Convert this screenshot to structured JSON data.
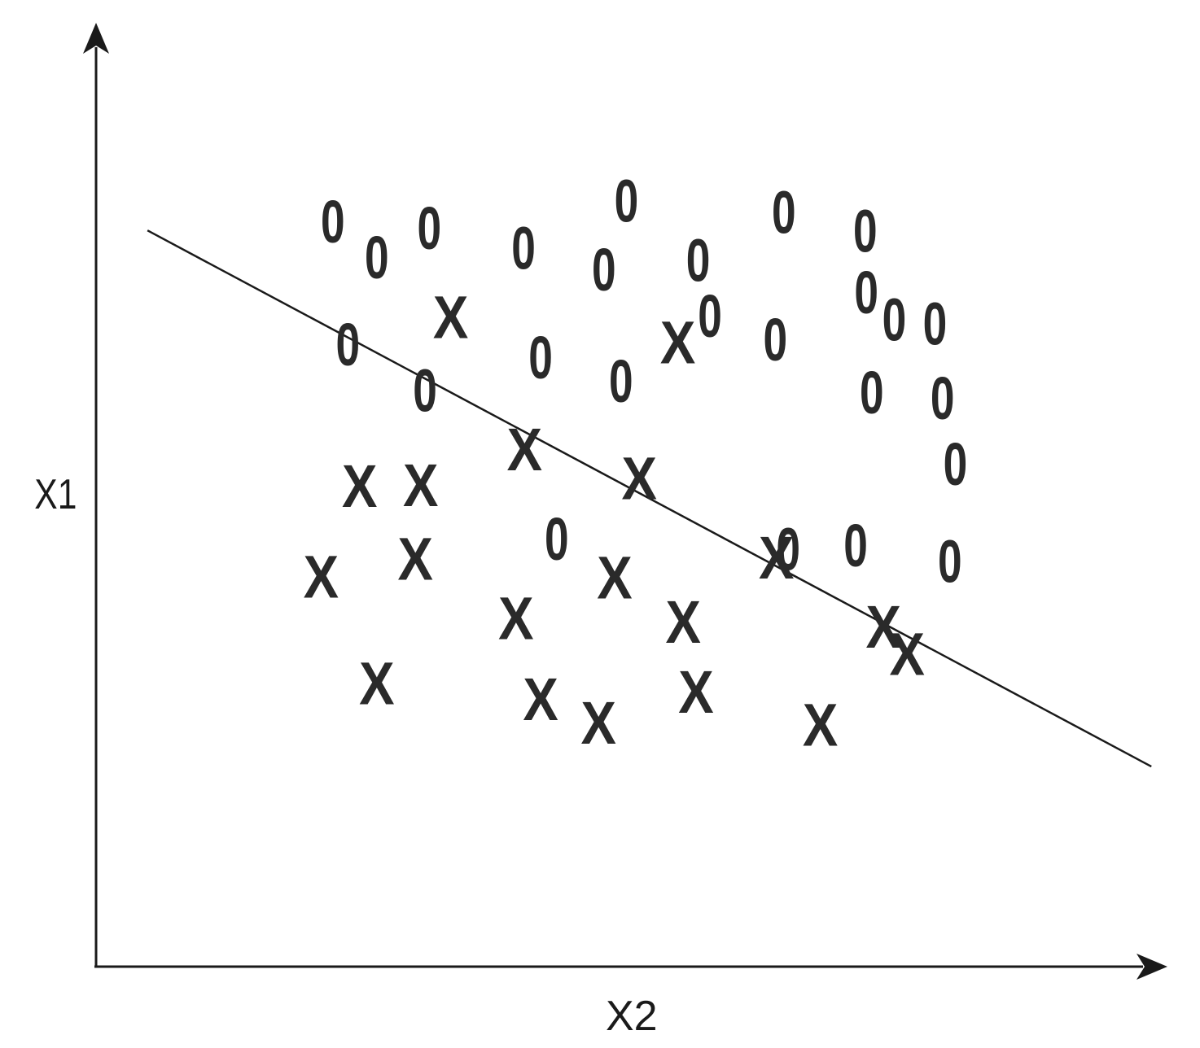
{
  "chart_data": {
    "type": "scatter",
    "title": "",
    "xlabel": "X2",
    "ylabel": "X1",
    "xlim": [
      0,
      1
    ],
    "ylim": [
      0,
      1
    ],
    "grid": false,
    "legend": "none",
    "series": [
      {
        "marker": "0",
        "points": [
          [
            0.221,
            0.789
          ],
          [
            0.262,
            0.751
          ],
          [
            0.311,
            0.782
          ],
          [
            0.399,
            0.761
          ],
          [
            0.474,
            0.738
          ],
          [
            0.495,
            0.811
          ],
          [
            0.562,
            0.748
          ],
          [
            0.642,
            0.799
          ],
          [
            0.718,
            0.779
          ],
          [
            0.745,
            0.685
          ],
          [
            0.235,
            0.659
          ],
          [
            0.307,
            0.61
          ],
          [
            0.415,
            0.645
          ],
          [
            0.49,
            0.62
          ],
          [
            0.573,
            0.689
          ],
          [
            0.634,
            0.664
          ],
          [
            0.719,
            0.714
          ],
          [
            0.724,
            0.608
          ],
          [
            0.79,
            0.602
          ],
          [
            0.783,
            0.681
          ],
          [
            0.797,
            0.429
          ],
          [
            0.43,
            0.453
          ],
          [
            0.646,
            0.442
          ],
          [
            0.709,
            0.446
          ],
          [
            0.802,
            0.532
          ]
        ]
      },
      {
        "marker": "X",
        "points": [
          [
            0.331,
            0.688
          ],
          [
            0.543,
            0.661
          ],
          [
            0.4,
            0.548
          ],
          [
            0.507,
            0.517
          ],
          [
            0.246,
            0.509
          ],
          [
            0.303,
            0.51
          ],
          [
            0.298,
            0.432
          ],
          [
            0.21,
            0.413
          ],
          [
            0.392,
            0.369
          ],
          [
            0.484,
            0.412
          ],
          [
            0.635,
            0.433
          ],
          [
            0.548,
            0.365
          ],
          [
            0.735,
            0.36
          ],
          [
            0.262,
            0.3
          ],
          [
            0.415,
            0.283
          ],
          [
            0.469,
            0.258
          ],
          [
            0.56,
            0.291
          ],
          [
            0.676,
            0.256
          ],
          [
            0.757,
            0.331
          ]
        ]
      }
    ],
    "boundary": {
      "from": [
        0.048,
        0.78
      ],
      "to": [
        0.985,
        0.212
      ]
    }
  }
}
